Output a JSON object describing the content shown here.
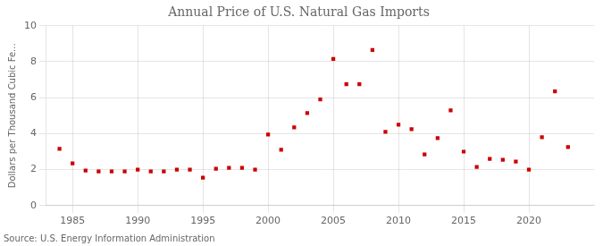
{
  "chart_data": {
    "type": "scatter",
    "title": "Annual Price of U.S. Natural Gas Imports",
    "ylabel": "Dollars per Thousand Cubic Fe...",
    "annotations": [
      "Source: U.S. Energy Information Administration"
    ],
    "x": [
      1984,
      1985,
      1986,
      1987,
      1988,
      1989,
      1990,
      1991,
      1992,
      1993,
      1994,
      1995,
      1996,
      1997,
      1998,
      1999,
      2000,
      2001,
      2002,
      2003,
      2004,
      2005,
      2006,
      2007,
      2008,
      2009,
      2010,
      2011,
      2012,
      2013,
      2014,
      2015,
      2016,
      2017,
      2018,
      2019,
      2020,
      2021,
      2022,
      2023
    ],
    "values": [
      3.15,
      2.35,
      1.95,
      1.9,
      1.9,
      1.9,
      2.0,
      1.9,
      1.9,
      2.0,
      2.0,
      1.55,
      2.05,
      2.1,
      2.1,
      2.0,
      3.95,
      3.1,
      4.35,
      5.15,
      5.9,
      8.15,
      6.75,
      6.75,
      8.65,
      4.1,
      4.5,
      4.25,
      2.85,
      3.75,
      5.3,
      3.0,
      2.15,
      2.6,
      2.55,
      2.45,
      2.0,
      3.8,
      6.35,
      3.25
    ],
    "color": "#cc0000",
    "marker": "square",
    "xlim": [
      1983,
      2025
    ],
    "xticks": [
      1985,
      1990,
      1995,
      2000,
      2005,
      2010,
      2015,
      2020
    ],
    "ylim": [
      0,
      10
    ],
    "yticks": [
      0,
      2,
      4,
      6,
      8,
      10
    ],
    "grid": true
  }
}
